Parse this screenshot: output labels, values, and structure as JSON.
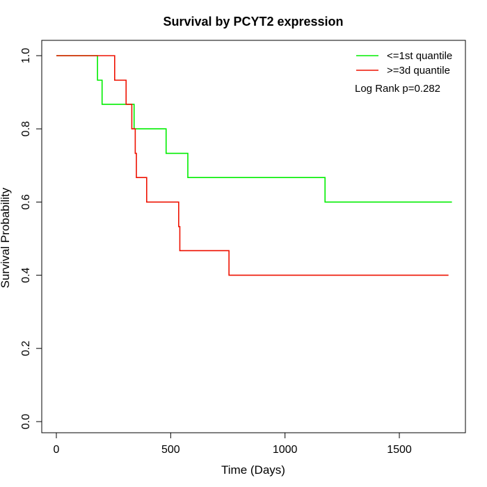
{
  "chart_data": {
    "type": "line",
    "step": true,
    "title": "Survival by PCYT2 expression",
    "xlabel": "Time (Days)",
    "ylabel": "Survival Probability",
    "xlim": [
      0,
      1800
    ],
    "ylim": [
      0,
      1.0
    ],
    "xticks": [
      0,
      500,
      1000,
      1500
    ],
    "yticks": [
      0.0,
      0.2,
      0.4,
      0.6,
      0.8,
      1.0
    ],
    "xtick_labels": [
      "0",
      "500",
      "1000",
      "1500"
    ],
    "ytick_labels": [
      "0.0",
      "0.2",
      "0.4",
      "0.6",
      "0.8",
      "1.0"
    ],
    "legend_position": "top-right",
    "annotation": "Log Rank p=0.282",
    "series": [
      {
        "name": "<=1st quantile",
        "color": "#00ee00",
        "x": [
          0,
          180,
          200,
          340,
          480,
          575,
          1175,
          1730
        ],
        "y": [
          1.0,
          0.933,
          0.867,
          0.8,
          0.733,
          0.667,
          0.6,
          0.6
        ]
      },
      {
        "name": ">=3d quantile",
        "color": "#ee1100",
        "x": [
          0,
          255,
          305,
          330,
          345,
          350,
          395,
          535,
          540,
          755,
          1715
        ],
        "y": [
          1.0,
          0.933,
          0.867,
          0.8,
          0.733,
          0.667,
          0.6,
          0.533,
          0.467,
          0.4,
          0.4
        ]
      }
    ]
  }
}
